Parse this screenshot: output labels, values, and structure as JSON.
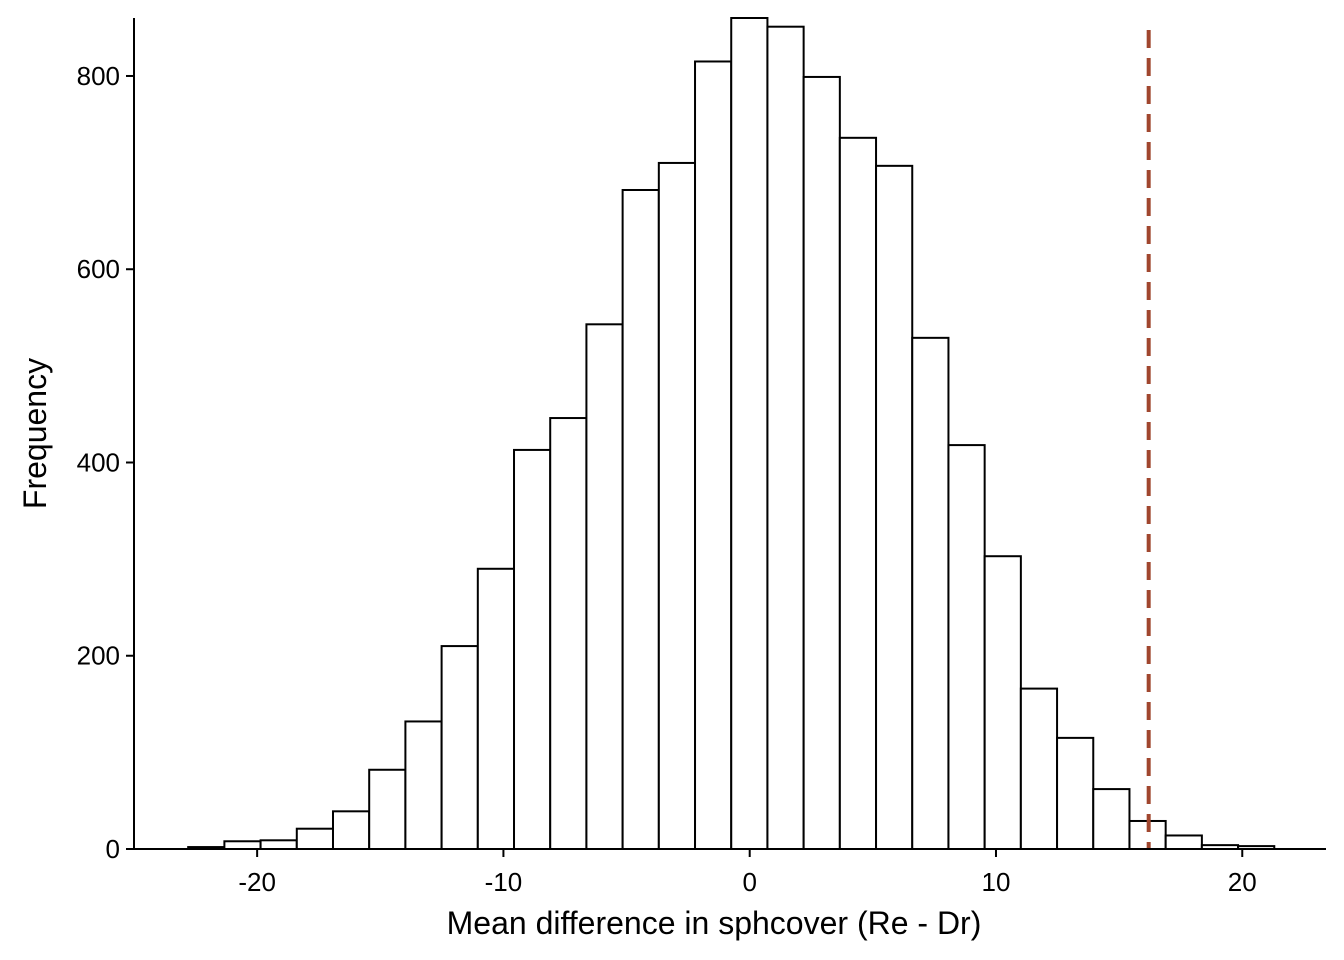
{
  "chart_data": {
    "type": "histogram",
    "title": "",
    "xlabel": "Mean difference in sphcover (Re - Dr)",
    "ylabel": "Frequency",
    "xlim": [
      -25,
      23.4
    ],
    "ylim": [
      0,
      860
    ],
    "bin_width": 1.47,
    "bin_start": -22.8,
    "counts": [
      2,
      8,
      9,
      21,
      39,
      82,
      132,
      210,
      290,
      413,
      446,
      543,
      682,
      710,
      815,
      860,
      851,
      799,
      736,
      707,
      529,
      418,
      303,
      166,
      115,
      62,
      29,
      14,
      4,
      3
    ],
    "x_ticks": [
      -20,
      -10,
      0,
      10,
      20
    ],
    "x_tick_labels": [
      "-20",
      "-10",
      "0",
      "10",
      "20"
    ],
    "y_ticks": [
      0,
      200,
      400,
      600,
      800
    ],
    "y_tick_labels": [
      "0",
      "200",
      "400",
      "600",
      "800"
    ],
    "reference_line": {
      "x": 16.2,
      "style": "dashed",
      "color": "#A0462E"
    },
    "bar_fill": "#FFFFFF",
    "bar_stroke": "#000000",
    "grid": false
  }
}
